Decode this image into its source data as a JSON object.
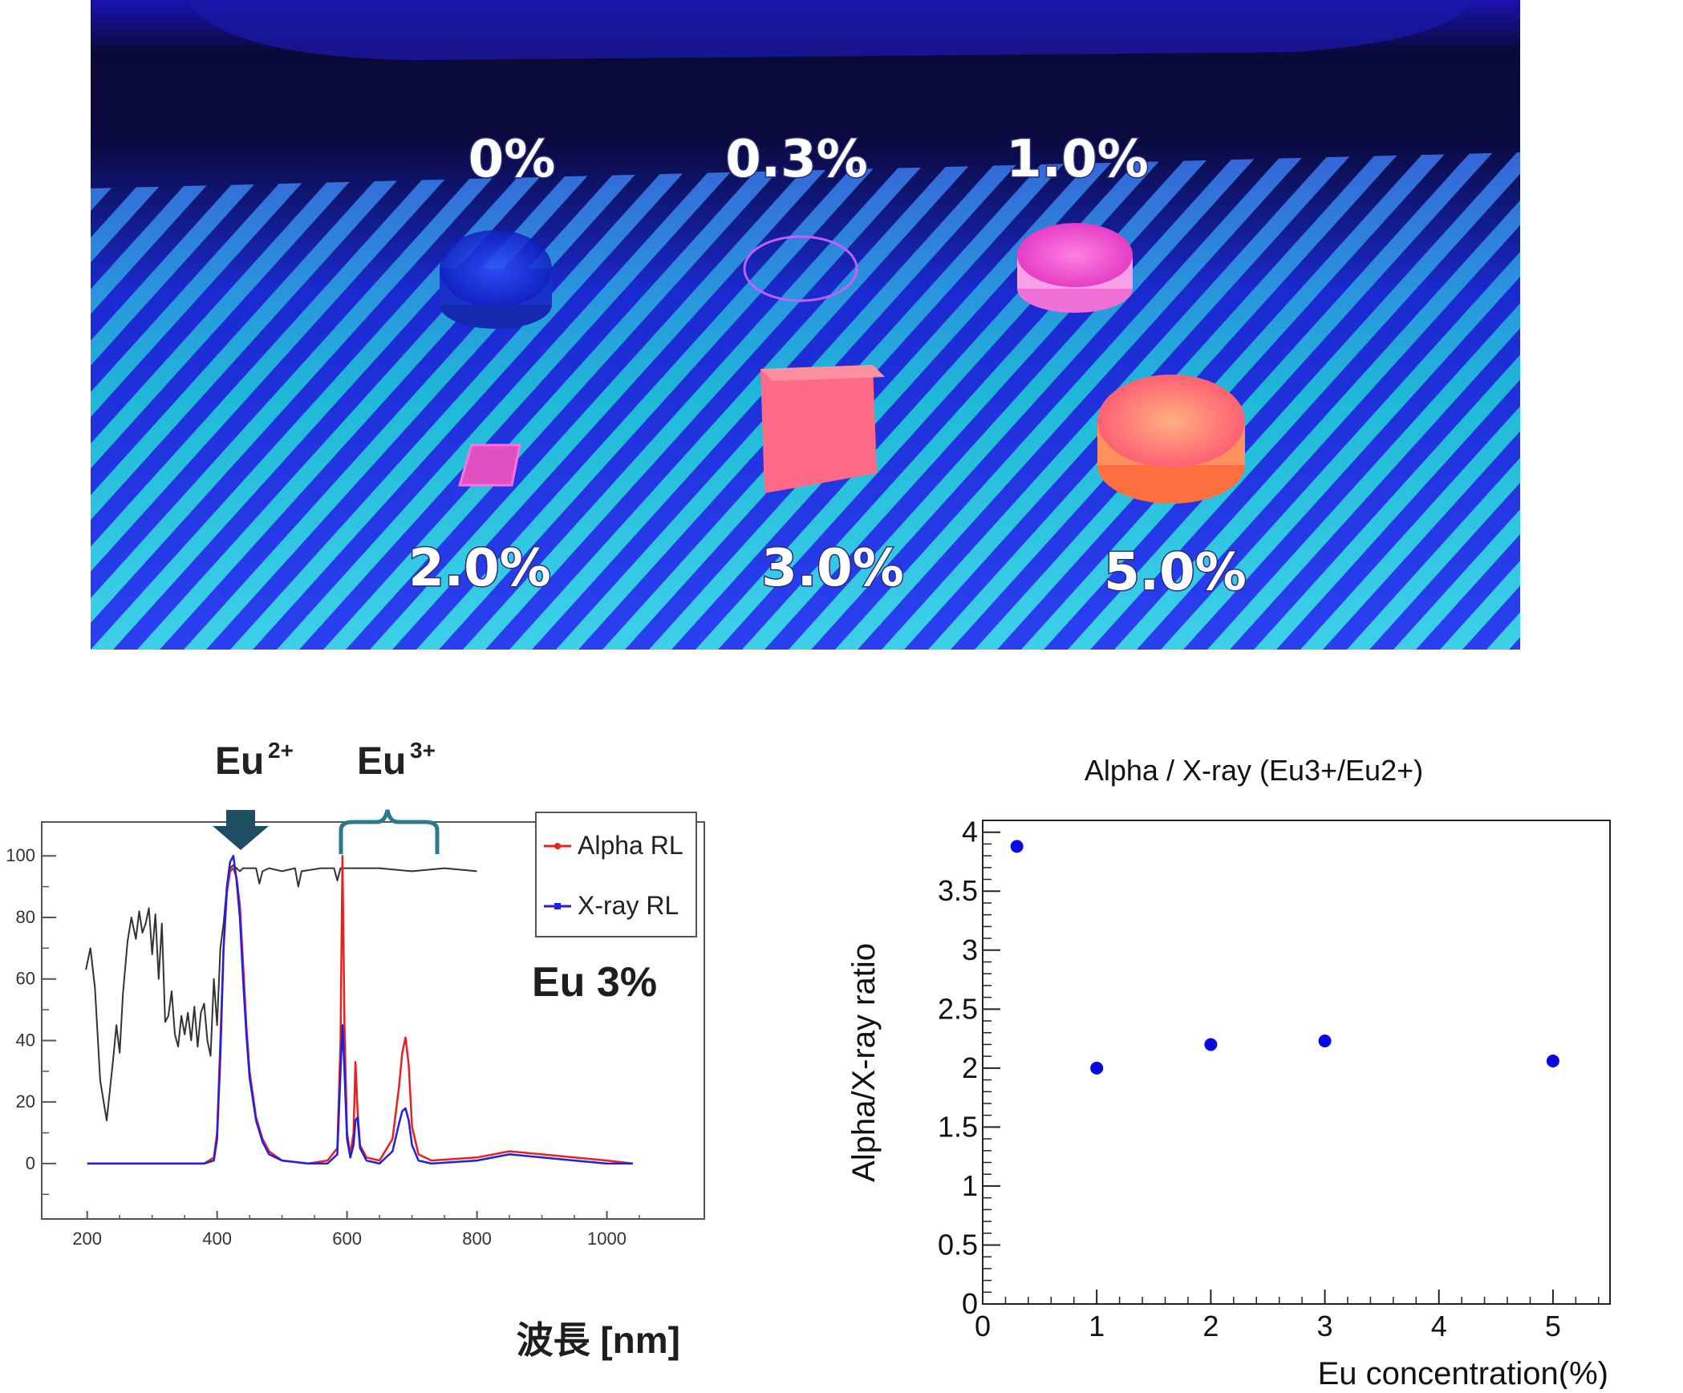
{
  "photo": {
    "labels": [
      "0%",
      "0.3%",
      "1.0%",
      "2.0%",
      "3.0%",
      "5.0%"
    ]
  },
  "chart_data": [
    {
      "type": "line",
      "annotations": {
        "eu2_base": "Eu",
        "eu2_sup": "2+",
        "eu3_base": "Eu",
        "eu3_sup": "3+",
        "sample": "Eu 3%"
      },
      "xlabel": "波長 [nm]",
      "ylabel": "",
      "xlim": [
        130,
        1150
      ],
      "ylim": [
        -18,
        111
      ],
      "x_ticks": [
        "200",
        "400",
        "600",
        "800",
        "1000"
      ],
      "y_ticks": [
        "0",
        "20",
        "40",
        "60",
        "80",
        "100"
      ],
      "legend_position": "top-right",
      "series": [
        {
          "name": "Alpha RL",
          "color": "#e82020",
          "x": [
            200,
            250,
            300,
            350,
            380,
            395,
            400,
            405,
            410,
            415,
            420,
            425,
            430,
            435,
            440,
            445,
            450,
            460,
            470,
            480,
            500,
            540,
            570,
            585,
            590,
            593,
            596,
            600,
            605,
            610,
            613,
            616,
            620,
            630,
            650,
            670,
            680,
            685,
            690,
            695,
            700,
            710,
            730,
            800,
            850,
            900,
            950,
            1000,
            1040
          ],
          "y": [
            0,
            0,
            0,
            0,
            0,
            2,
            10,
            40,
            70,
            88,
            95,
            96,
            93,
            84,
            65,
            45,
            30,
            15,
            8,
            4,
            1,
            0,
            1,
            5,
            40,
            100,
            45,
            10,
            3,
            10,
            33,
            18,
            6,
            2,
            1,
            8,
            25,
            36,
            41,
            32,
            12,
            3,
            1,
            2,
            4,
            3,
            2,
            1,
            0
          ]
        },
        {
          "name": "X-ray RL",
          "color": "#2020e0",
          "x": [
            200,
            250,
            300,
            350,
            380,
            395,
            400,
            405,
            410,
            415,
            420,
            425,
            430,
            435,
            440,
            445,
            450,
            460,
            470,
            480,
            500,
            540,
            570,
            585,
            590,
            593,
            596,
            600,
            605,
            610,
            613,
            616,
            620,
            630,
            650,
            670,
            680,
            685,
            690,
            695,
            700,
            710,
            730,
            800,
            850,
            900,
            950,
            1000,
            1040
          ],
          "y": [
            0,
            0,
            0,
            0,
            0,
            1,
            8,
            35,
            70,
            90,
            98,
            100,
            92,
            80,
            60,
            42,
            28,
            14,
            7,
            3,
            1,
            0,
            0,
            3,
            30,
            45,
            30,
            8,
            2,
            6,
            14,
            15,
            5,
            1,
            0,
            4,
            13,
            17,
            18,
            14,
            6,
            1,
            0,
            1,
            3,
            2,
            1,
            0,
            0
          ]
        },
        {
          "name": "",
          "color": "#333333",
          "x": [
            198,
            205,
            212,
            220,
            230,
            240,
            245,
            250,
            255,
            262,
            268,
            275,
            280,
            285,
            290,
            295,
            300,
            305,
            310,
            315,
            320,
            325,
            330,
            335,
            340,
            345,
            350,
            355,
            360,
            365,
            370,
            375,
            380,
            385,
            390,
            395,
            400,
            405,
            410,
            415,
            420,
            425,
            430,
            435,
            440,
            450,
            460,
            465,
            470,
            480,
            500,
            520,
            525,
            530,
            560,
            580,
            585,
            590,
            600,
            650,
            700,
            750,
            800
          ],
          "y": [
            63,
            70,
            57,
            27,
            14,
            34,
            45,
            36,
            55,
            72,
            80,
            73,
            82,
            75,
            78,
            83,
            68,
            81,
            60,
            78,
            46,
            48,
            56,
            42,
            38,
            48,
            42,
            49,
            40,
            51,
            38,
            49,
            52,
            40,
            35,
            60,
            45,
            70,
            78,
            90,
            96,
            97,
            96,
            95,
            96,
            96,
            96,
            91,
            95,
            96,
            95,
            96,
            90,
            95,
            96,
            96,
            92,
            96,
            96,
            96,
            95,
            96,
            95
          ]
        }
      ]
    },
    {
      "type": "scatter",
      "title": "Alpha / X-ray (Eu3+/Eu2+)",
      "xlabel": "Eu concentration(%)",
      "ylabel": "Alpha/X-ray ratio",
      "xlim": [
        0,
        5.5
      ],
      "ylim": [
        0,
        4.1
      ],
      "x_ticks": [
        "0",
        "1",
        "2",
        "3",
        "4",
        "5"
      ],
      "y_ticks": [
        "0",
        "0.5",
        "1",
        "1.5",
        "2",
        "2.5",
        "3",
        "3.5",
        "4"
      ],
      "series": [
        {
          "name": "",
          "color": "#0a0ae0",
          "x": [
            0.3,
            1.0,
            2.0,
            3.0,
            5.0
          ],
          "y": [
            3.88,
            2.0,
            2.2,
            2.23,
            2.06
          ]
        }
      ]
    }
  ]
}
